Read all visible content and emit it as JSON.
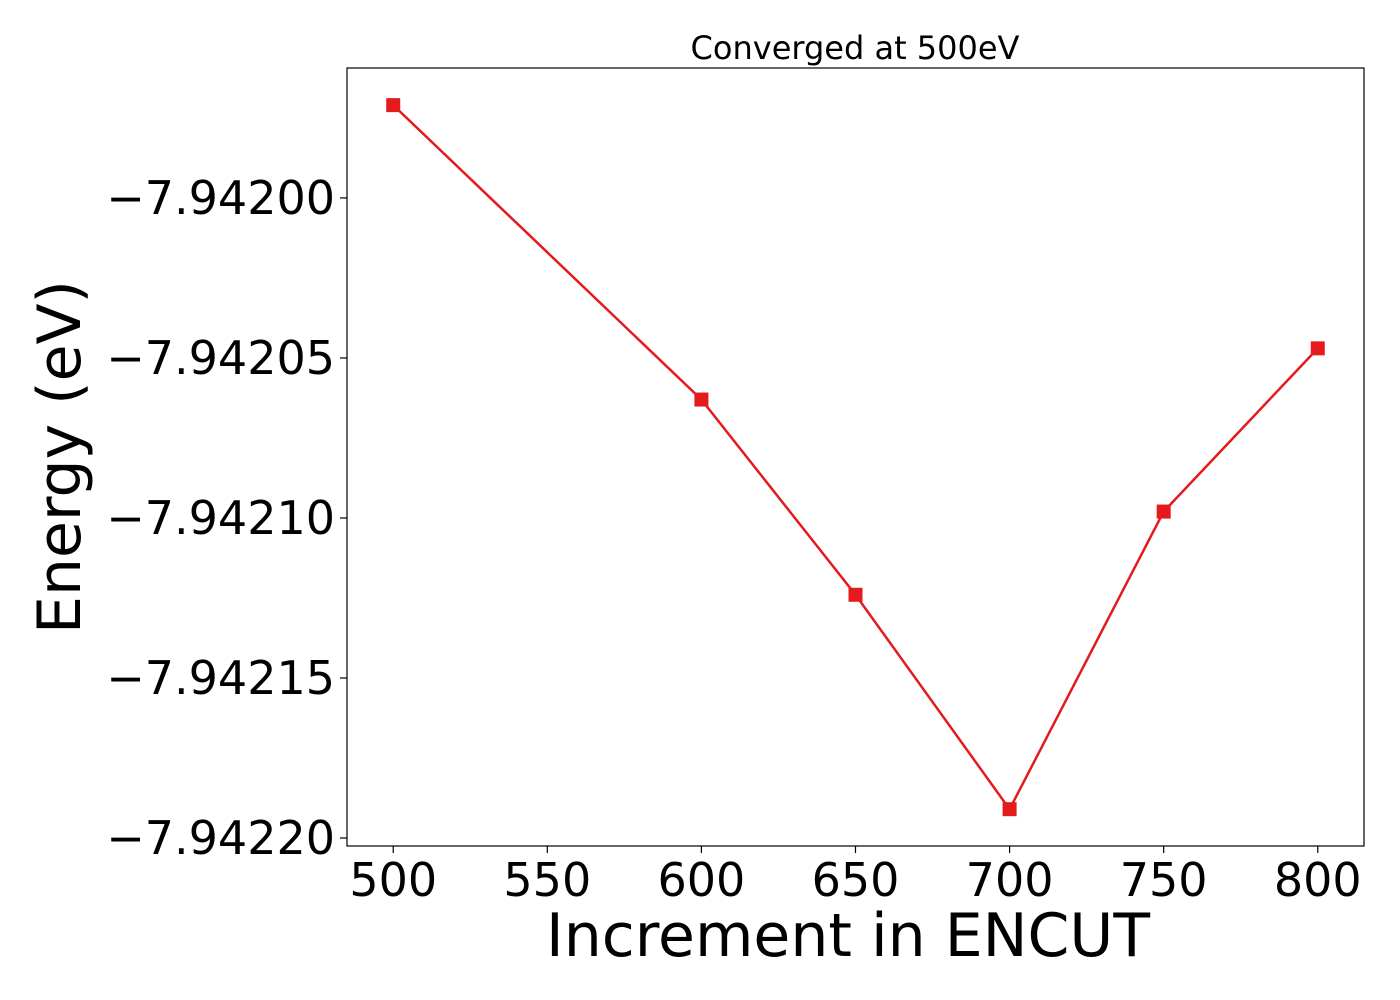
{
  "chart_data": {
    "type": "line",
    "title": "Converged at 500eV",
    "xlabel": "Increment in ENCUT",
    "ylabel": "Energy (eV)",
    "x": [
      500,
      600,
      650,
      700,
      750,
      800
    ],
    "series": [
      {
        "name": "Energy",
        "color": "#e41a1c",
        "marker": "square",
        "values": [
          -7.941971,
          -7.942063,
          -7.942124,
          -7.942191,
          -7.942098,
          -7.942047
        ]
      }
    ],
    "xlim": [
      485,
      815
    ],
    "ylim": [
      -7.9422025,
      -7.9419594
    ],
    "xticks": [
      500,
      550,
      600,
      650,
      700,
      750,
      800
    ],
    "yticks": [
      {
        "value": -7.942,
        "label": "−7.94200"
      },
      {
        "value": -7.94205,
        "label": "−7.94205"
      },
      {
        "value": -7.9421,
        "label": "−7.94210"
      },
      {
        "value": -7.94215,
        "label": "−7.94215"
      },
      {
        "value": -7.9422,
        "label": "−7.94220"
      }
    ],
    "grid": false,
    "legend": false
  }
}
